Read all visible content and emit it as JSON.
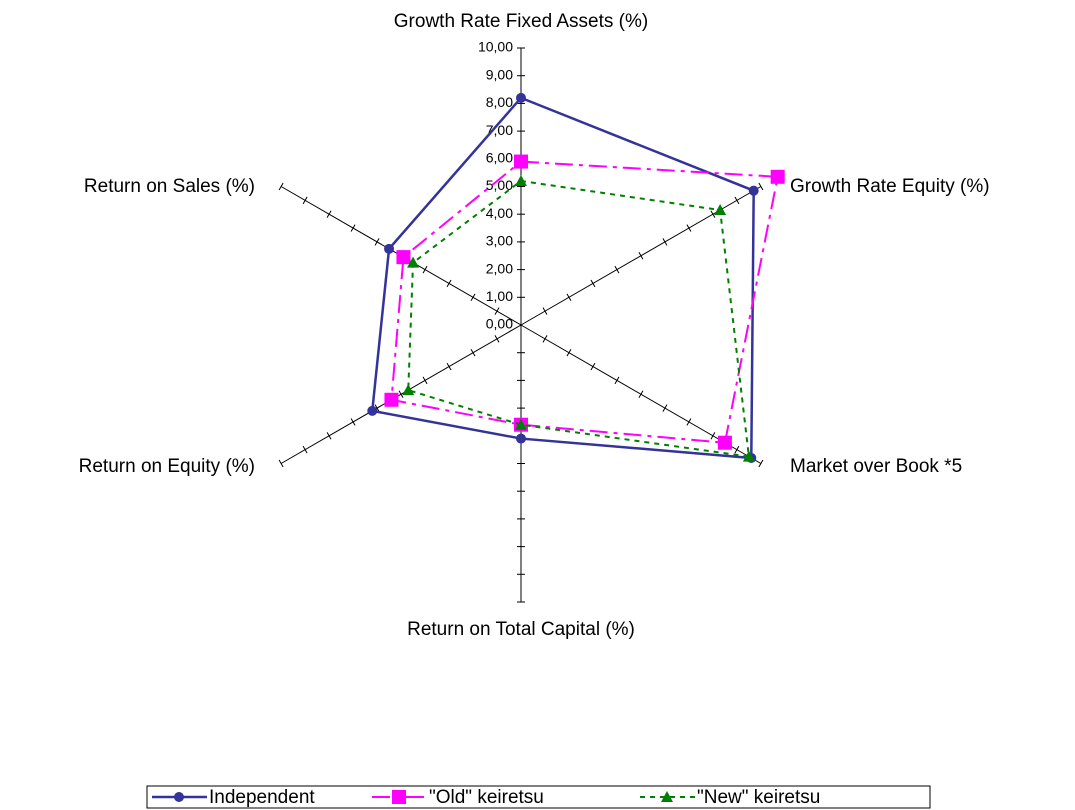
{
  "chart_data": {
    "type": "radar",
    "categories": [
      "Growth Rate Fixed Assets (%)",
      "Growth Rate Equity (%)",
      "Market over Book *5",
      "Return on Total Capital (%)",
      "Return on Equity (%)",
      "Return on Sales (%)"
    ],
    "ylim": [
      0,
      10
    ],
    "yticks": [
      {
        "value": 0,
        "label": "0,00"
      },
      {
        "value": 1,
        "label": "1,00"
      },
      {
        "value": 2,
        "label": "2,00"
      },
      {
        "value": 3,
        "label": "3,00"
      },
      {
        "value": 4,
        "label": "4,00"
      },
      {
        "value": 5,
        "label": "5,00"
      },
      {
        "value": 6,
        "label": "6,00"
      },
      {
        "value": 7,
        "label": "7,00"
      },
      {
        "value": 8,
        "label": "8,00"
      },
      {
        "value": 9,
        "label": "9,00"
      },
      {
        "value": 10,
        "label": "10,00"
      }
    ],
    "series": [
      {
        "name": "Independent",
        "color": "#333399",
        "values": [
          8.2,
          9.7,
          9.6,
          4.1,
          6.2,
          5.5
        ]
      },
      {
        "name": "\"Old\" keiretsu",
        "color": "#ff00ff",
        "values": [
          5.9,
          10.7,
          8.5,
          3.6,
          5.4,
          4.9
        ]
      },
      {
        "name": "\"New\" keiretsu",
        "color": "#008000",
        "values": [
          5.2,
          8.3,
          9.5,
          3.6,
          4.7,
          4.5
        ]
      }
    ]
  }
}
